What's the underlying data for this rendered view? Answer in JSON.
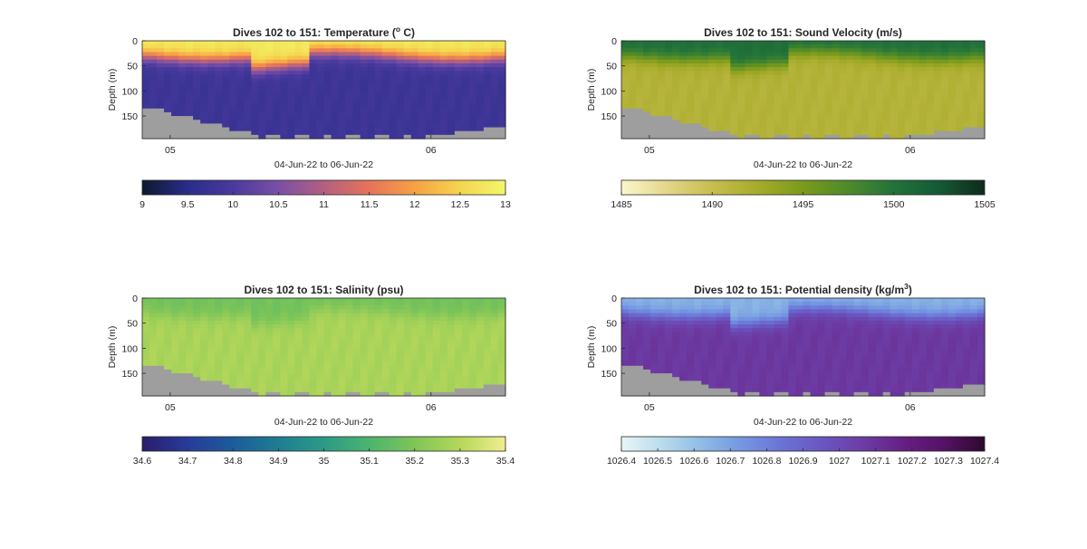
{
  "chart_data": [
    {
      "type": "heatmap",
      "title": "Dives 102 to 151: Temperature (",
      "title_superscript": "o",
      "title_suffix": " C)",
      "xlabel": "04-Jun-22 to 06-Jun-22",
      "ylabel": "Depth (m)",
      "ylim": [
        195,
        0
      ],
      "yticks": [
        "0",
        "50",
        "100",
        "150"
      ],
      "xticks": [
        "05",
        "06"
      ],
      "bathymetry_color": "#9e9e9e",
      "colorbar": {
        "range": [
          9,
          13
        ],
        "ticks": [
          "9",
          "9.5",
          "10",
          "10.5",
          "11",
          "11.5",
          "12",
          "12.5",
          "13"
        ],
        "colormap": [
          "#0b1a2e",
          "#2a2d8a",
          "#4a3a9e",
          "#7a4fa6",
          "#b3607f",
          "#e6735a",
          "#f7a144",
          "#f5d54f",
          "#f2f76a"
        ]
      },
      "profile": {
        "surface_value": 12.8,
        "deep_value": 9.8,
        "mixed_layer_depth_m": 30
      }
    },
    {
      "type": "heatmap",
      "title": "Dives 102 to 151: Sound Velocity (m/s)",
      "xlabel": "04-Jun-22 to 06-Jun-22",
      "ylabel": "Depth (m)",
      "ylim": [
        195,
        0
      ],
      "yticks": [
        "0",
        "50",
        "100",
        "150"
      ],
      "xticks": [
        "05",
        "06"
      ],
      "bathymetry_color": "#9e9e9e",
      "colorbar": {
        "range": [
          1485,
          1505
        ],
        "ticks": [
          "1485",
          "1490",
          "1495",
          "1500",
          "1505"
        ],
        "colormap": [
          "#fbf7cc",
          "#e3d68a",
          "#c7bd4f",
          "#a6ab2a",
          "#7b9a1c",
          "#4e8a2a",
          "#22733a",
          "#145a36",
          "#0f2a1c"
        ]
      },
      "profile": {
        "surface_value": 1500.5,
        "deep_value": 1491.5,
        "mixed_layer_depth_m": 30
      }
    },
    {
      "type": "heatmap",
      "title": "Dives 102 to 151: Salinity (psu)",
      "xlabel": "04-Jun-22 to 06-Jun-22",
      "ylabel": "Depth (m)",
      "ylim": [
        195,
        0
      ],
      "yticks": [
        "0",
        "50",
        "100",
        "150"
      ],
      "xticks": [
        "05",
        "06"
      ],
      "bathymetry_color": "#9e9e9e",
      "colorbar": {
        "range": [
          34.6,
          35.4
        ],
        "ticks": [
          "34.6",
          "34.7",
          "34.8",
          "34.9",
          "35",
          "35.1",
          "35.2",
          "35.3",
          "35.4"
        ],
        "colormap": [
          "#2a1d6b",
          "#283b9a",
          "#1c5c9a",
          "#1f7d92",
          "#2c9a86",
          "#4cb46e",
          "#7ec558",
          "#b5d75a",
          "#f2ee8e"
        ]
      },
      "profile": {
        "surface_value": 35.18,
        "deep_value": 35.28,
        "mixed_layer_depth_m": 30
      }
    },
    {
      "type": "heatmap",
      "title": "Dives 102 to 151: Potential density (kg/m",
      "title_superscript": "3",
      "title_suffix": ")",
      "xlabel": "04-Jun-22 to 06-Jun-22",
      "ylabel": "Depth (m)",
      "ylim": [
        195,
        0
      ],
      "yticks": [
        "0",
        "50",
        "100",
        "150"
      ],
      "xticks": [
        "05",
        "06"
      ],
      "bathymetry_color": "#9e9e9e",
      "colorbar": {
        "range": [
          1026.4,
          1027.4
        ],
        "ticks": [
          "1026.4",
          "1026.5",
          "1026.6",
          "1026.7",
          "1026.8",
          "1026.9",
          "1027",
          "1027.1",
          "1027.2",
          "1027.3",
          "1027.4"
        ],
        "colormap": [
          "#e8f6f7",
          "#b9dcec",
          "#8fbbe4",
          "#7496e2",
          "#6b72d4",
          "#6a55bf",
          "#6c3ca4",
          "#661f82",
          "#551265",
          "#2d0a2e"
        ]
      },
      "profile": {
        "surface_value": 1026.65,
        "deep_value": 1027.08,
        "mixed_layer_depth_m": 30
      }
    }
  ]
}
